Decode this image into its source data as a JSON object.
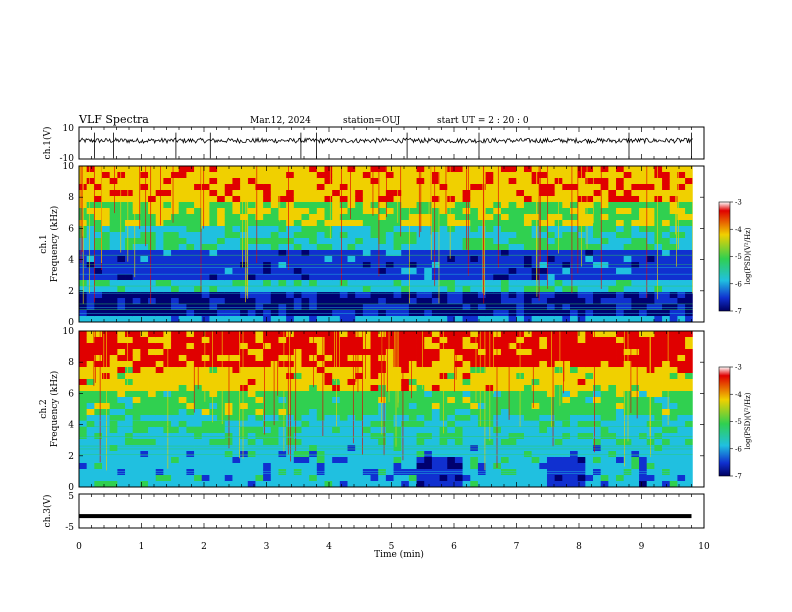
{
  "header": {
    "title": "VLF Spectra",
    "date": "Mar.12, 2024",
    "station": "station=OUJ",
    "start": "start UT =  2 : 20 : 0"
  },
  "chart_data": [
    {
      "type": "line",
      "panel": "ch1-waveform",
      "ylabel": "ch.1(V)",
      "ylim": [
        -10,
        10
      ],
      "yticks": [
        "10",
        "-10"
      ],
      "x": [
        0,
        10
      ],
      "baseline": 1.5,
      "spikes_min": [
        0.25,
        0.55,
        1.55,
        2.1,
        3.55,
        3.8,
        5.25,
        6.4,
        8.8,
        9.8
      ]
    },
    {
      "type": "heatmap",
      "panel": "ch1-spectrogram",
      "ylabel": "ch.1",
      "ylabel2": "Frequency (kHz)",
      "ylim": [
        0,
        10
      ],
      "yticks": [
        "0",
        "2",
        "4",
        "6",
        "8",
        "10"
      ],
      "colorbar": {
        "label": "log(PSD)(V²/Hz)",
        "range": [
          -7,
          -3
        ],
        "ticks": [
          "-3",
          "-4",
          "-5",
          "-6",
          "-7"
        ]
      }
    },
    {
      "type": "heatmap",
      "panel": "ch2-spectrogram",
      "ylabel": "ch.2",
      "ylabel2": "Frequency (kHz)",
      "ylim": [
        0,
        10
      ],
      "yticks": [
        "0",
        "2",
        "4",
        "6",
        "8",
        "10"
      ],
      "colorbar": {
        "label": "log(PSD)(V²/Hz)",
        "range": [
          -7,
          -3
        ],
        "ticks": [
          "-3",
          "-4",
          "-5",
          "-6",
          "-7"
        ]
      }
    },
    {
      "type": "line",
      "panel": "ch3-waveform",
      "ylabel": "ch.3(V)",
      "ylim": [
        -5,
        5
      ],
      "yticks": [
        "5",
        "-5"
      ],
      "x": [
        0,
        9.8
      ],
      "y": [
        -1.5,
        -1.5
      ]
    }
  ],
  "xaxis": {
    "label": "Time (min)",
    "ticks": [
      "0",
      "1",
      "2",
      "3",
      "4",
      "5",
      "6",
      "7",
      "8",
      "9",
      "10"
    ],
    "range": [
      0,
      10
    ]
  },
  "colors": {
    "red": "#e00000",
    "yellow": "#f0d000",
    "green": "#30d050",
    "cyan": "#20c0e0",
    "blue": "#1030d0",
    "navy": "#000070"
  }
}
